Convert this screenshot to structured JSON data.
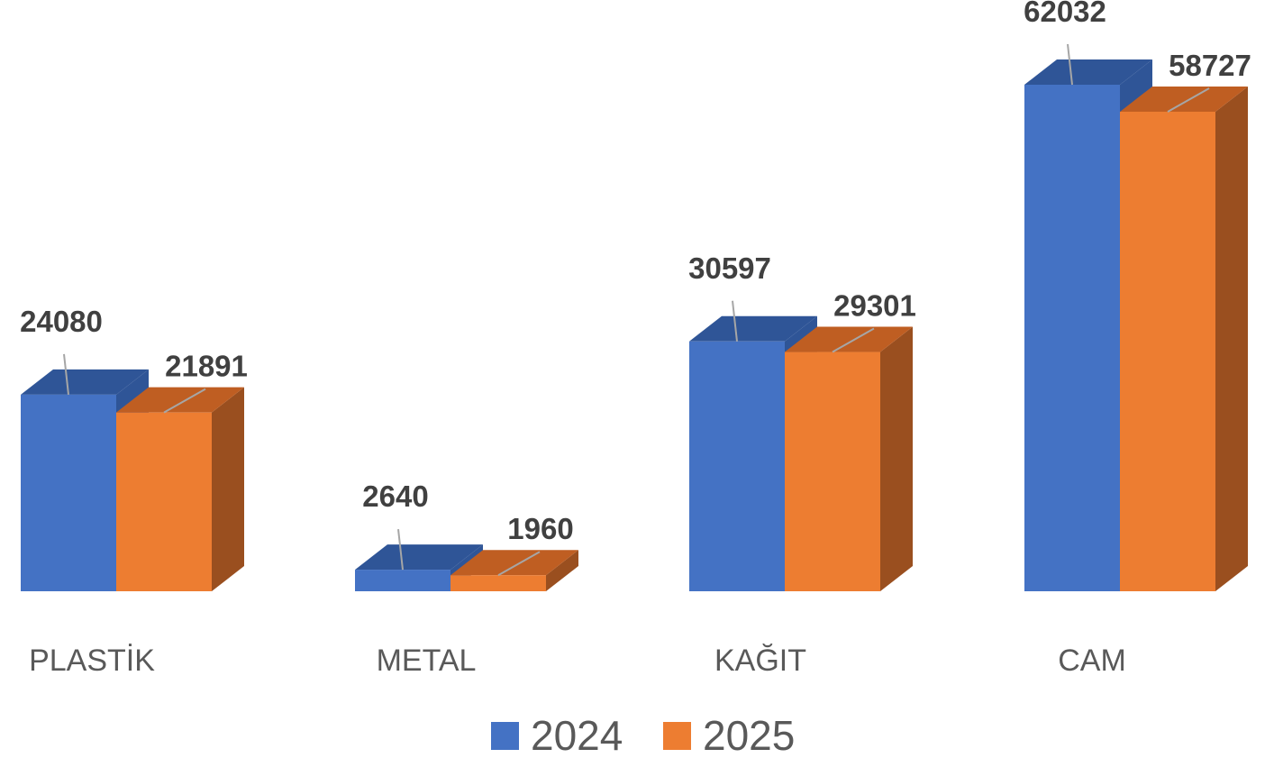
{
  "chart_data": {
    "type": "bar",
    "style": "3d-clustered-column",
    "categories": [
      "PLASTİK",
      "METAL",
      "KAĞIT",
      "CAM"
    ],
    "series": [
      {
        "name": "2024",
        "values": [
          24080,
          2640,
          30597,
          62032
        ],
        "color": "#4472C4",
        "top_color": "#2F5597",
        "side_color": "#2F5597"
      },
      {
        "name": "2025",
        "values": [
          21891,
          1960,
          29301,
          58727
        ],
        "color": "#ED7D31",
        "top_color": "#BF5E22",
        "side_color": "#9A4F1F"
      }
    ],
    "data_labels": true,
    "legend": "bottom",
    "grid": false,
    "ylim": [
      0,
      62032
    ]
  }
}
